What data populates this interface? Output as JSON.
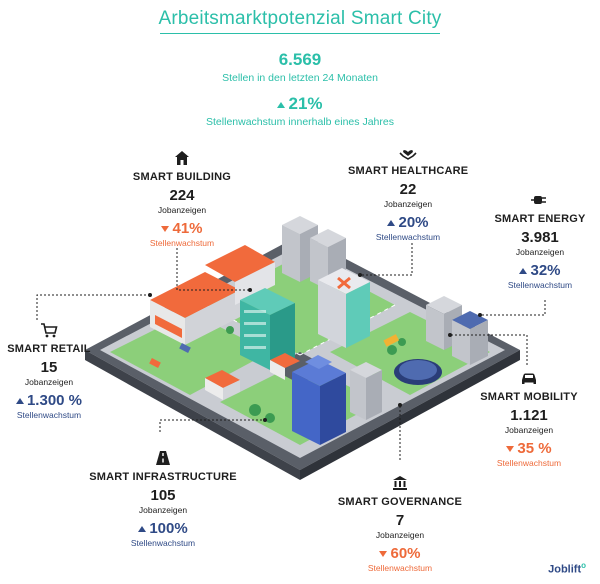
{
  "title": "Arbeitsmarktpotenzial Smart City",
  "total_jobs": {
    "value": "6.569",
    "label": "Stellen in den letzten 24 Monaten"
  },
  "total_growth": {
    "value": "21%",
    "label": "Stellenwachstum innerhalb eines Jahres",
    "direction": "up"
  },
  "sectors": [
    {
      "key": "building",
      "name": "SMART BUILDING",
      "count": "224",
      "unit": "Jobanzeigen",
      "growth": "41%",
      "growth_label": "Stellenwachstum",
      "direction": "down",
      "icon": "house-icon"
    },
    {
      "key": "healthcare",
      "name": "SMART HEALTHCARE",
      "count": "22",
      "unit": "Jobanzeigen",
      "growth": "20%",
      "growth_label": "Stellenwachstum",
      "direction": "up",
      "icon": "heart-hands-icon"
    },
    {
      "key": "energy",
      "name": "SMART ENERGY",
      "count": "3.981",
      "unit": "Jobanzeigen",
      "growth": "32%",
      "growth_label": "Stellenwachstum",
      "direction": "up",
      "icon": "plug-icon"
    },
    {
      "key": "retail",
      "name": "SMART RETAIL",
      "count": "15",
      "unit": "Jobanzeigen",
      "growth": "1.300 %",
      "growth_label": "Stellenwachstum",
      "direction": "up",
      "icon": "cart-icon"
    },
    {
      "key": "mobility",
      "name": "SMART MOBILITY",
      "count": "1.121",
      "unit": "Jobanzeigen",
      "growth": "35 %",
      "growth_label": "Stellenwachstum",
      "direction": "down",
      "icon": "car-icon"
    },
    {
      "key": "infrastructure",
      "name": "SMART INFRASTRUCTURE",
      "count": "105",
      "unit": "Jobanzeigen",
      "growth": "100%",
      "growth_label": "Stellenwachstum",
      "direction": "up",
      "icon": "road-icon"
    },
    {
      "key": "governance",
      "name": "SMART GOVERNANCE",
      "count": "7",
      "unit": "Jobanzeigen",
      "growth": "60%",
      "growth_label": "Stellenwachstum",
      "direction": "down",
      "icon": "government-icon"
    }
  ],
  "brand": {
    "name": "Joblift"
  },
  "colors": {
    "teal": "#2bbfa9",
    "navy": "#2f4a86",
    "orange": "#ee6a3a"
  }
}
